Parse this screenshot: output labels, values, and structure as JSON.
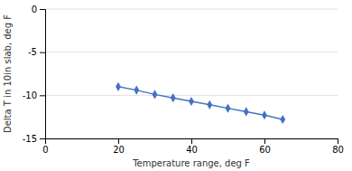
{
  "chart_data": {
    "type": "line",
    "x": [
      20,
      25,
      30,
      35,
      40,
      45,
      50,
      55,
      60,
      65
    ],
    "values": [
      -9.0,
      -9.4,
      -9.9,
      -10.3,
      -10.7,
      -11.1,
      -11.5,
      -11.9,
      -12.3,
      -12.8
    ],
    "color": "#4472C4",
    "marker": "diamond",
    "xlabel": "Temperature range, deg F",
    "ylabel": "Delta T in 10in slab, deg F",
    "xlim": [
      0,
      80
    ],
    "ylim": [
      -15,
      0
    ],
    "xticks": [
      0,
      20,
      40,
      60,
      80
    ],
    "yticks": [
      0,
      -5,
      -10,
      -15
    ],
    "grid": true
  }
}
